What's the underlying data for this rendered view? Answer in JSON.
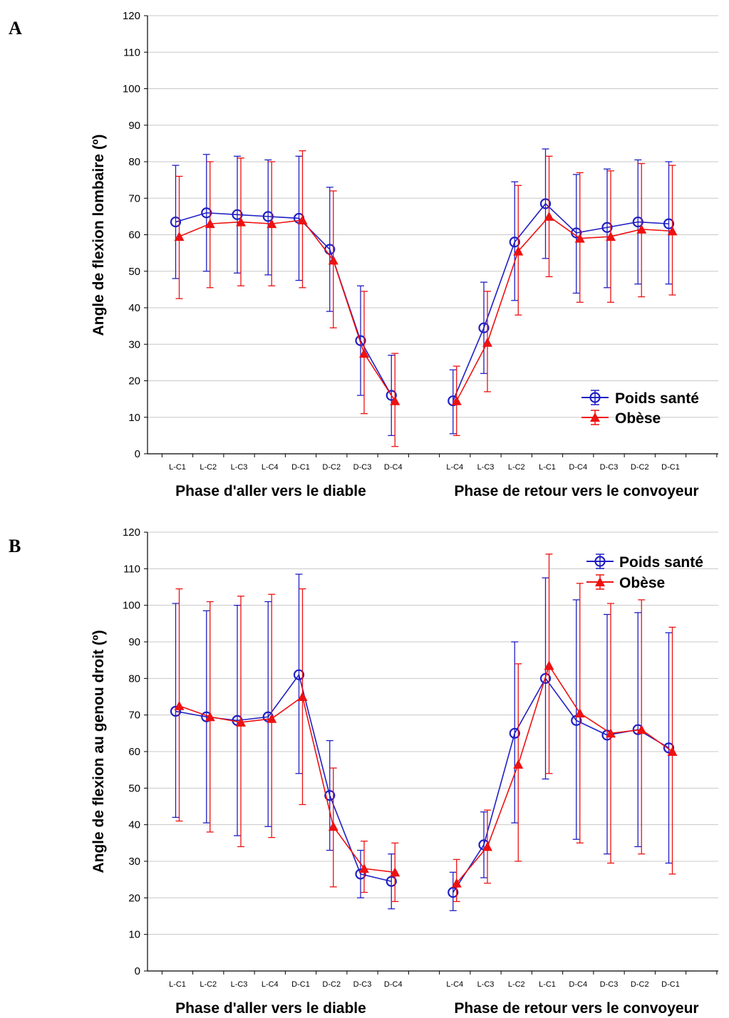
{
  "colors": {
    "poids_sante": "#1f1fc4",
    "obese": "#ee1111",
    "grid": "#c8c8c8",
    "axis": "#000000"
  },
  "chart_data": [
    {
      "panel": "A",
      "type": "line",
      "ylabel": "Angle de flexion lombaire (º)",
      "ylim": [
        0,
        120
      ],
      "yticks": [
        0,
        10,
        20,
        30,
        40,
        50,
        60,
        70,
        80,
        90,
        100,
        110,
        120
      ],
      "grid": true,
      "legend_position": "bottom-right",
      "phases": [
        "Phase d'aller vers le diable",
        "Phase de retour vers le convoyeur"
      ],
      "groups": [
        [
          "L-C1",
          "L-C2",
          "L-C3",
          "L-C4",
          "D-C1",
          "D-C2",
          "D-C3",
          "D-C4"
        ],
        [
          "L-C4",
          "L-C3",
          "L-C2",
          "L-C1",
          "D-C4",
          "D-C3",
          "D-C2",
          "D-C1"
        ]
      ],
      "series": [
        {
          "name": "Poids santé",
          "marker": "circle",
          "values": [
            [
              63.5,
              66,
              65.5,
              65,
              64.5,
              56,
              31,
              16
            ],
            [
              14.5,
              34.5,
              58,
              68.5,
              60.5,
              62,
              63.5,
              63
            ]
          ],
          "lower": [
            [
              48,
              50,
              49.5,
              49,
              47.5,
              39,
              16,
              5
            ],
            [
              5.5,
              22,
              42,
              53.5,
              44,
              45.5,
              46.5,
              46.5
            ]
          ],
          "upper": [
            [
              79,
              82,
              81.5,
              80.5,
              81.5,
              73,
              46,
              27
            ],
            [
              23,
              47,
              74.5,
              83.5,
              76.5,
              78,
              80.5,
              80
            ]
          ]
        },
        {
          "name": "Obèse",
          "marker": "triangle",
          "values": [
            [
              59.5,
              63,
              63.5,
              63,
              64,
              53,
              27.5,
              14.5
            ],
            [
              14.5,
              30.5,
              55.5,
              65,
              59,
              59.5,
              61.5,
              61
            ]
          ],
          "lower": [
            [
              42.5,
              45.5,
              46,
              46,
              45.5,
              34.5,
              11,
              2
            ],
            [
              5,
              17,
              38,
              48.5,
              41.5,
              41.5,
              43,
              43.5
            ]
          ],
          "upper": [
            [
              76,
              80,
              81,
              80,
              83,
              72,
              44.5,
              27.5
            ],
            [
              24,
              44.5,
              73.5,
              81.5,
              77,
              77.5,
              79.5,
              79
            ]
          ]
        }
      ]
    },
    {
      "panel": "B",
      "type": "line",
      "ylabel": "Angle de flexion au genou droit  (º)",
      "ylim": [
        0,
        120
      ],
      "yticks": [
        0,
        10,
        20,
        30,
        40,
        50,
        60,
        70,
        80,
        90,
        100,
        110,
        120
      ],
      "grid": true,
      "legend_position": "top-right",
      "phases": [
        "Phase d'aller vers le diable",
        "Phase de retour vers le convoyeur"
      ],
      "groups": [
        [
          "L-C1",
          "L-C2",
          "L-C3",
          "L-C4",
          "D-C1",
          "D-C2",
          "D-C3",
          "D-C4"
        ],
        [
          "L-C4",
          "L-C3",
          "L-C2",
          "L-C1",
          "D-C4",
          "D-C3",
          "D-C2",
          "D-C1"
        ]
      ],
      "series": [
        {
          "name": "Poids santé",
          "marker": "circle",
          "values": [
            [
              71,
              69.5,
              68.5,
              69.5,
              81,
              48,
              26.5,
              24.5
            ],
            [
              21.5,
              34.5,
              65,
              80,
              68.5,
              64.5,
              66,
              61
            ]
          ],
          "lower": [
            [
              42,
              40.5,
              37,
              39.5,
              54,
              33,
              20,
              17
            ],
            [
              16.5,
              25.5,
              40.5,
              52.5,
              36,
              32,
              34,
              29.5
            ]
          ],
          "upper": [
            [
              100.5,
              98.5,
              100,
              101,
              108.5,
              63,
              33,
              32
            ],
            [
              27,
              43.5,
              90,
              107.5,
              101.5,
              97.5,
              98,
              92.5
            ]
          ]
        },
        {
          "name": "Obèse",
          "marker": "triangle",
          "values": [
            [
              72.5,
              69.5,
              68,
              69,
              75,
              39.5,
              28,
              27
            ],
            [
              24,
              34,
              56.5,
              83.5,
              70.5,
              65,
              66,
              60
            ]
          ],
          "lower": [
            [
              41,
              38,
              34,
              36.5,
              45.5,
              23,
              21.5,
              19
            ],
            [
              19,
              24,
              30,
              54,
              35,
              29.5,
              32,
              26.5
            ]
          ],
          "upper": [
            [
              104.5,
              101,
              102.5,
              103,
              104.5,
              55.5,
              35.5,
              35
            ],
            [
              30.5,
              44,
              84,
              114,
              106,
              100.5,
              101.5,
              94
            ]
          ]
        }
      ]
    }
  ]
}
